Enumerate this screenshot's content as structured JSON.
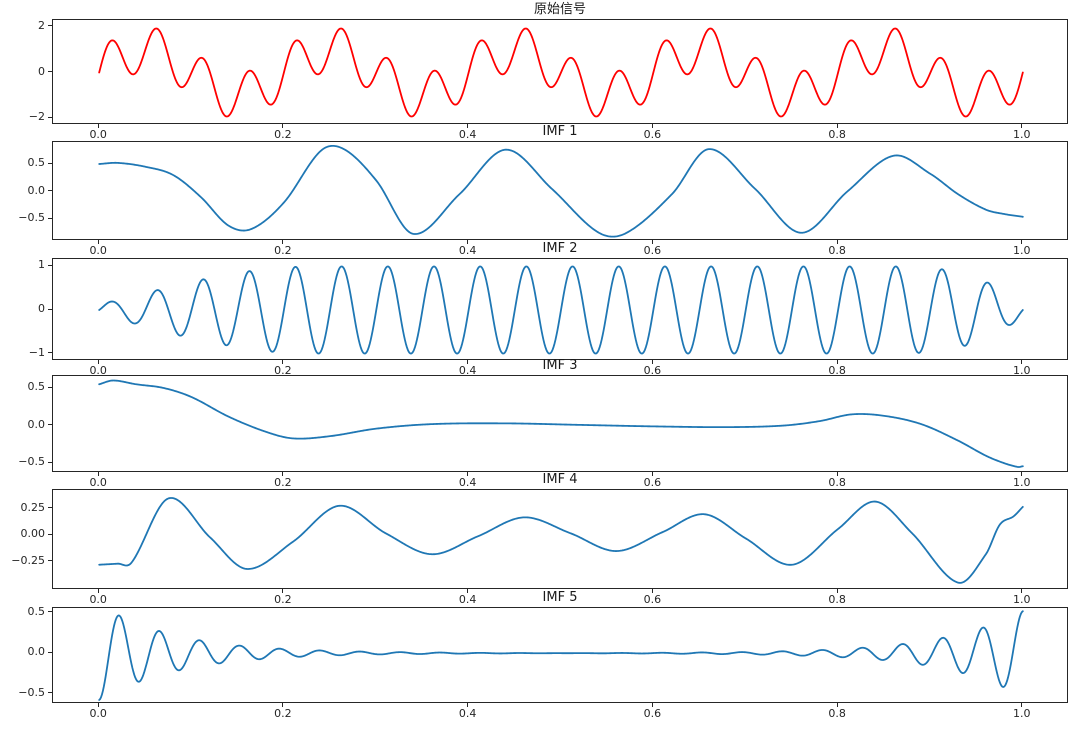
{
  "figure": {
    "background": "#ffffff",
    "spine_color": "#262626",
    "original_color": "#ff0000",
    "imf_color": "#1f77b4"
  },
  "chart_data": [
    {
      "type": "line",
      "title": "原始信号",
      "color": "#ff0000",
      "xlim": [
        -0.05,
        1.05
      ],
      "ylim": [
        -2.3,
        2.3
      ],
      "xtick_values": [
        0.0,
        0.2,
        0.4,
        0.6,
        0.8,
        1.0
      ],
      "xtick_labels": [
        "0.0",
        "0.2",
        "0.4",
        "0.6",
        "0.8",
        "1.0"
      ],
      "ytick_values": [
        2,
        0,
        -2
      ],
      "ytick_labels": [
        "2",
        "0",
        "−2"
      ],
      "grid": false,
      "legend": null,
      "series": [
        {
          "kind": "sines",
          "components": [
            {
              "amp": 1.0,
              "freq": 5,
              "phase": 0
            },
            {
              "amp": 1.0,
              "freq": 20,
              "phase": 0
            }
          ]
        }
      ]
    },
    {
      "type": "line",
      "title": "IMF 1",
      "color": "#1f77b4",
      "xlim": [
        -0.05,
        1.05
      ],
      "ylim": [
        -0.9,
        0.9
      ],
      "xtick_values": [
        0.0,
        0.2,
        0.4,
        0.6,
        0.8,
        1.0
      ],
      "xtick_labels": [
        "0.0",
        "0.2",
        "0.4",
        "0.6",
        "0.8",
        "1.0"
      ],
      "ytick_values": [
        0.5,
        0.0,
        -0.5
      ],
      "ytick_labels": [
        "0.5",
        "0.0",
        "−0.5"
      ],
      "grid": false,
      "legend": null,
      "series": [
        {
          "kind": "points",
          "points": [
            [
              0,
              0.5
            ],
            [
              0.02,
              0.52
            ],
            [
              0.05,
              0.45
            ],
            [
              0.08,
              0.3
            ],
            [
              0.11,
              -0.1
            ],
            [
              0.14,
              -0.62
            ],
            [
              0.165,
              -0.68
            ],
            [
              0.2,
              -0.2
            ],
            [
              0.24,
              0.74
            ],
            [
              0.265,
              0.77
            ],
            [
              0.3,
              0.2
            ],
            [
              0.34,
              -0.77
            ],
            [
              0.39,
              -0.05
            ],
            [
              0.44,
              0.76
            ],
            [
              0.49,
              0.05
            ],
            [
              0.54,
              -0.74
            ],
            [
              0.57,
              -0.76
            ],
            [
              0.62,
              -0.05
            ],
            [
              0.66,
              0.77
            ],
            [
              0.71,
              0.05
            ],
            [
              0.76,
              -0.75
            ],
            [
              0.81,
              0.0
            ],
            [
              0.86,
              0.65
            ],
            [
              0.9,
              0.32
            ],
            [
              0.93,
              -0.05
            ],
            [
              0.96,
              -0.33
            ],
            [
              0.98,
              -0.41
            ],
            [
              1.0,
              -0.46
            ]
          ]
        }
      ]
    },
    {
      "type": "line",
      "title": "IMF 2",
      "color": "#1f77b4",
      "xlim": [
        -0.05,
        1.05
      ],
      "ylim": [
        -1.17,
        1.17
      ],
      "xtick_values": [
        0.0,
        0.2,
        0.4,
        0.6,
        0.8,
        1.0
      ],
      "xtick_labels": [
        "0.0",
        "0.2",
        "0.4",
        "0.6",
        "0.8",
        "1.0"
      ],
      "ytick_values": [
        1,
        0,
        -1
      ],
      "ytick_labels": [
        "1",
        "0",
        "−1"
      ],
      "grid": false,
      "legend": null,
      "series": [
        {
          "kind": "sines",
          "components": [
            {
              "amp": 1.0,
              "freq": 20,
              "phase": 0
            }
          ],
          "envelope": [
            [
              0,
              0.12
            ],
            [
              0.01,
              0.18
            ],
            [
              0.04,
              0.32
            ],
            [
              0.07,
              0.5
            ],
            [
              0.1,
              0.65
            ],
            [
              0.14,
              0.82
            ],
            [
              0.18,
              0.95
            ],
            [
              0.22,
              1
            ],
            [
              0.88,
              1
            ],
            [
              0.92,
              0.92
            ],
            [
              0.95,
              0.75
            ],
            [
              0.97,
              0.55
            ],
            [
              0.99,
              0.3
            ],
            [
              1,
              0.18
            ]
          ]
        }
      ]
    },
    {
      "type": "line",
      "title": "IMF 3",
      "color": "#1f77b4",
      "xlim": [
        -0.05,
        1.05
      ],
      "ylim": [
        -0.63,
        0.66
      ],
      "xtick_values": [
        0.0,
        0.2,
        0.4,
        0.6,
        0.8,
        1.0
      ],
      "xtick_labels": [
        "0.0",
        "0.2",
        "0.4",
        "0.6",
        "0.8",
        "1.0"
      ],
      "ytick_values": [
        0.5,
        0.0,
        -0.5
      ],
      "ytick_labels": [
        "0.5",
        "0.0",
        "−0.5"
      ],
      "grid": false,
      "legend": null,
      "series": [
        {
          "kind": "points",
          "points": [
            [
              0,
              0.55
            ],
            [
              0.015,
              0.6
            ],
            [
              0.04,
              0.55
            ],
            [
              0.07,
              0.5
            ],
            [
              0.1,
              0.38
            ],
            [
              0.14,
              0.12
            ],
            [
              0.18,
              -0.08
            ],
            [
              0.21,
              -0.17
            ],
            [
              0.25,
              -0.14
            ],
            [
              0.3,
              -0.04
            ],
            [
              0.36,
              0.02
            ],
            [
              0.44,
              0.03
            ],
            [
              0.52,
              0.01
            ],
            [
              0.6,
              -0.01
            ],
            [
              0.68,
              -0.02
            ],
            [
              0.74,
              0.0
            ],
            [
              0.78,
              0.06
            ],
            [
              0.815,
              0.15
            ],
            [
              0.85,
              0.13
            ],
            [
              0.89,
              0.02
            ],
            [
              0.93,
              -0.2
            ],
            [
              0.96,
              -0.4
            ],
            [
              0.98,
              -0.5
            ],
            [
              0.995,
              -0.55
            ],
            [
              1.0,
              -0.54
            ]
          ]
        }
      ]
    },
    {
      "type": "line",
      "title": "IMF 4",
      "color": "#1f77b4",
      "xlim": [
        -0.05,
        1.05
      ],
      "ylim": [
        -0.52,
        0.43
      ],
      "xtick_values": [
        0.0,
        0.2,
        0.4,
        0.6,
        0.8,
        1.0
      ],
      "xtick_labels": [
        "0.0",
        "0.2",
        "0.4",
        "0.6",
        "0.8",
        "1.0"
      ],
      "ytick_values": [
        0.25,
        0.0,
        -0.25
      ],
      "ytick_labels": [
        "0.25",
        "0.00",
        "−0.25"
      ],
      "grid": false,
      "legend": null,
      "series": [
        {
          "kind": "points",
          "points": [
            [
              0,
              -0.28
            ],
            [
              0.02,
              -0.27
            ],
            [
              0.035,
              -0.26
            ],
            [
              0.075,
              0.35
            ],
            [
              0.12,
              -0.02
            ],
            [
              0.16,
              -0.32
            ],
            [
              0.21,
              -0.06
            ],
            [
              0.26,
              0.28
            ],
            [
              0.31,
              0.02
            ],
            [
              0.36,
              -0.18
            ],
            [
              0.41,
              -0.01
            ],
            [
              0.46,
              0.17
            ],
            [
              0.51,
              0.02
            ],
            [
              0.56,
              -0.15
            ],
            [
              0.61,
              0.03
            ],
            [
              0.655,
              0.2
            ],
            [
              0.7,
              -0.03
            ],
            [
              0.75,
              -0.28
            ],
            [
              0.8,
              0.06
            ],
            [
              0.84,
              0.32
            ],
            [
              0.88,
              0.02
            ],
            [
              0.93,
              -0.45
            ],
            [
              0.96,
              -0.18
            ],
            [
              0.975,
              0.1
            ],
            [
              0.99,
              0.18
            ],
            [
              1.0,
              0.27
            ]
          ]
        }
      ]
    },
    {
      "type": "line",
      "title": "IMF 5",
      "color": "#1f77b4",
      "xlim": [
        -0.05,
        1.05
      ],
      "ylim": [
        -0.63,
        0.56
      ],
      "xtick_values": [
        0.0,
        0.2,
        0.4,
        0.6,
        0.8,
        1.0
      ],
      "xtick_labels": [
        "0.0",
        "0.2",
        "0.4",
        "0.6",
        "0.8",
        "1.0"
      ],
      "ytick_values": [
        0.5,
        0.0,
        -0.5
      ],
      "ytick_labels": [
        "0.5",
        "0.0",
        "−0.5"
      ],
      "grid": false,
      "legend": null,
      "series": [
        {
          "kind": "sines",
          "mirror": false,
          "components": [
            {
              "amp": 0.58,
              "freq": 23,
              "phase": -90
            }
          ],
          "envelope": [
            [
              0,
              1
            ],
            [
              0.05,
              0.55
            ],
            [
              0.1,
              0.3
            ],
            [
              0.15,
              0.165
            ],
            [
              0.2,
              0.09
            ],
            [
              0.25,
              0.05
            ],
            [
              0.3,
              0.027
            ],
            [
              0.4,
              0.008
            ],
            [
              0.5,
              0.0025
            ],
            [
              0.6,
              0
            ],
            [
              1,
              0
            ]
          ]
        },
        {
          "kind": "sines",
          "mirror": true,
          "components": [
            {
              "amp": 0.52,
              "freq": 23,
              "phase": 90
            }
          ],
          "envelope": [
            [
              0,
              1
            ],
            [
              0.05,
              0.55
            ],
            [
              0.1,
              0.3
            ],
            [
              0.15,
              0.165
            ],
            [
              0.2,
              0.09
            ],
            [
              0.25,
              0.05
            ],
            [
              0.3,
              0.027
            ],
            [
              0.4,
              0.008
            ],
            [
              0.5,
              0.0025
            ],
            [
              0.6,
              0
            ],
            [
              1,
              0
            ]
          ]
        }
      ]
    }
  ]
}
